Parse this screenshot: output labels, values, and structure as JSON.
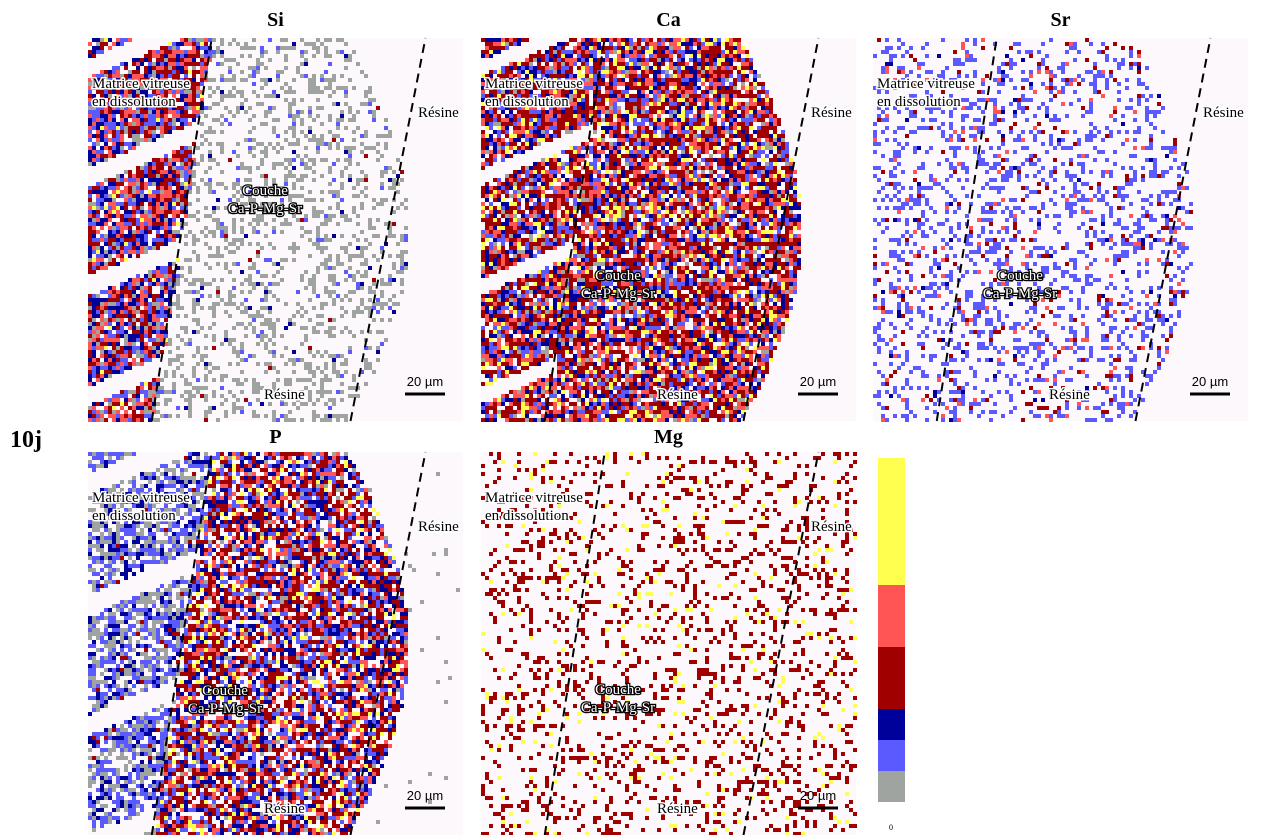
{
  "figure_label": "10j",
  "panels": [
    {
      "title": "Si",
      "matrix": [
        "Matrice vitreuse",
        "en dissolution"
      ],
      "resin_right": "Résine",
      "layer": [
        "Couche",
        "Ca-P-Mg-Sr"
      ],
      "resin_bottom": "Résine",
      "scale": "20 µm"
    },
    {
      "title": "Ca",
      "matrix": [
        "Matrice vitreuse",
        "en dissolution"
      ],
      "resin_right": "Résine",
      "layer": [
        "Couche",
        "Ca-P-Mg-Sr"
      ],
      "resin_bottom": "Résine",
      "scale": "20 µm"
    },
    {
      "title": "Sr",
      "matrix": [
        "Matrice vitreuse",
        "en dissolution"
      ],
      "resin_right": "Résine",
      "layer": [
        "Couche",
        "Ca-P-Mg-Sr"
      ],
      "resin_bottom": "Résine",
      "scale": "20 µm"
    },
    {
      "title": "P",
      "matrix": [
        "Matrice vitreuse",
        "en dissolution"
      ],
      "resin_right": "Résine",
      "layer": [
        "Couche",
        "Ca-P-Mg-Sr"
      ],
      "resin_bottom": "Résine",
      "scale": "20 µm"
    },
    {
      "title": "Mg",
      "matrix": [
        "Matrice vitreuse",
        "en dissolution"
      ],
      "resin_right": "Résine",
      "layer": [
        "Couche",
        "Ca-P-Mg-Sr"
      ],
      "resin_bottom": "Résine",
      "scale": "20 µm"
    }
  ],
  "colorbar": {
    "min_label": "0"
  }
}
